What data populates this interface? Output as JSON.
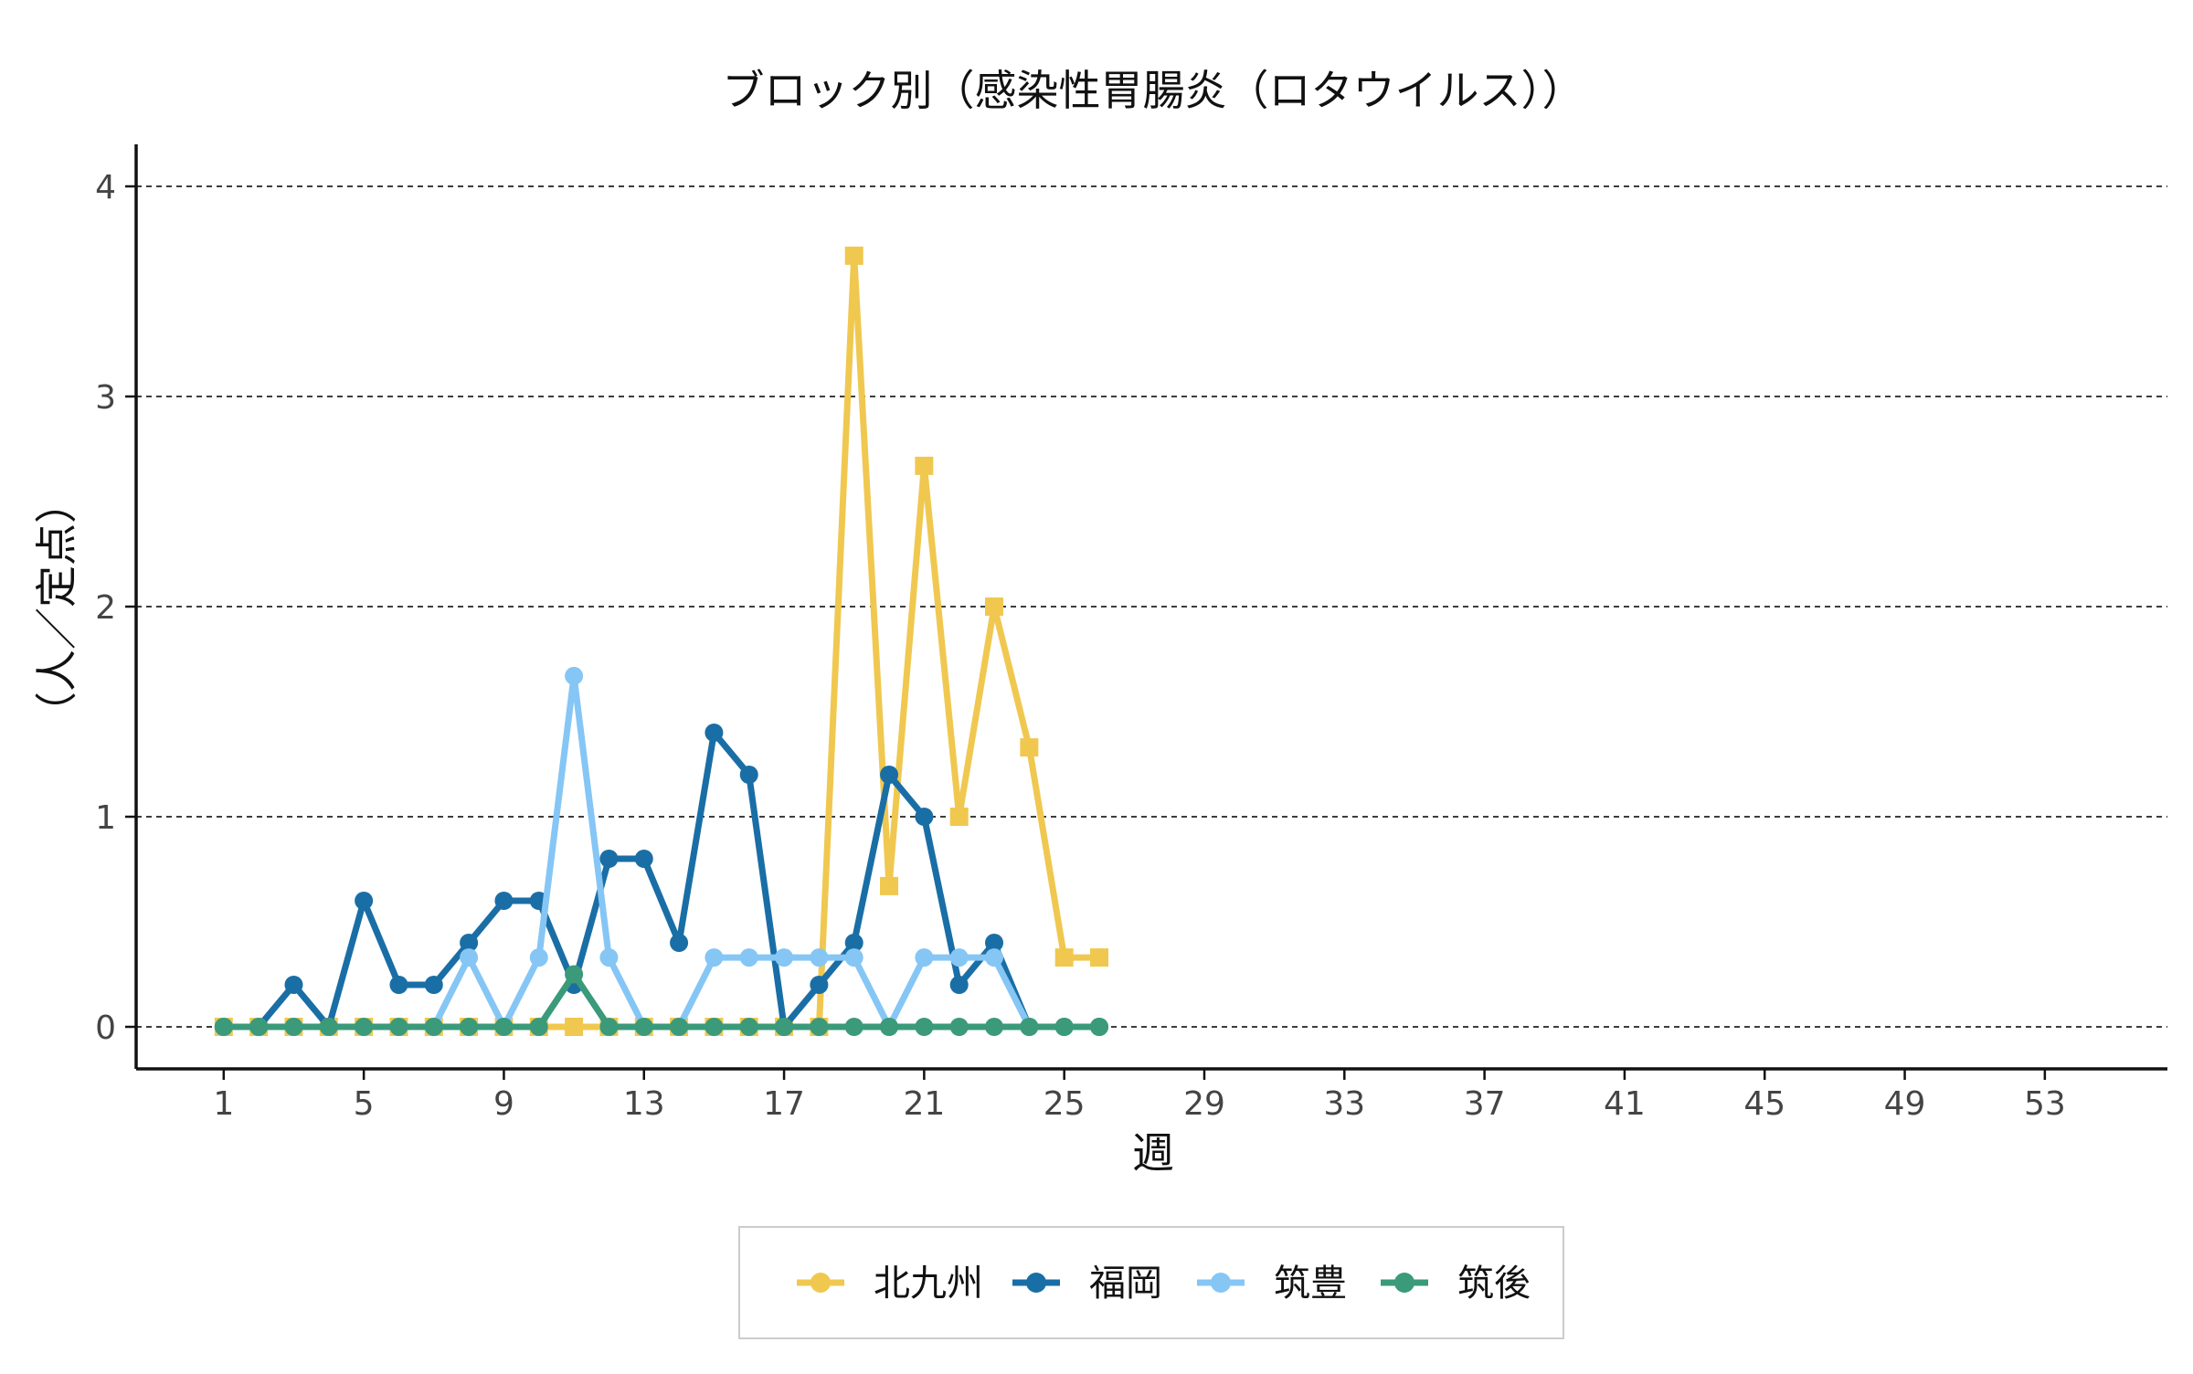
{
  "chart_data": {
    "type": "line",
    "title": "ブロック別（感染性胃腸炎（ロタウイルス））",
    "xlabel": "週",
    "ylabel": "（人／定点）",
    "xlim": [
      -1.5,
      56.5
    ],
    "ylim": [
      -0.2,
      4.2
    ],
    "x_ticks": [
      1,
      5,
      9,
      13,
      17,
      21,
      25,
      29,
      33,
      37,
      41,
      45,
      49,
      53
    ],
    "y_ticks": [
      0,
      1,
      2,
      3,
      4
    ],
    "grid": "horizontal dashed",
    "legend_position": "bottom",
    "series": [
      {
        "name": "北九州",
        "color": "#F0C850",
        "marker": "square",
        "x": [
          1,
          2,
          3,
          4,
          5,
          6,
          7,
          8,
          9,
          10,
          11,
          12,
          13,
          14,
          15,
          16,
          17,
          18,
          19,
          20,
          21,
          22,
          23,
          24,
          25,
          26
        ],
        "values": [
          0,
          0,
          0,
          0,
          0,
          0,
          0,
          0,
          0,
          0,
          0,
          0,
          0,
          0,
          0,
          0,
          0,
          0,
          3.67,
          0.67,
          2.67,
          1,
          2,
          1.33,
          0.33,
          0.33
        ]
      },
      {
        "name": "福岡",
        "color": "#1A6EA6",
        "marker": "circle",
        "x": [
          1,
          2,
          3,
          4,
          5,
          6,
          7,
          8,
          9,
          10,
          11,
          12,
          13,
          14,
          15,
          16,
          17,
          18,
          19,
          20,
          21,
          22,
          23,
          24,
          25,
          26
        ],
        "values": [
          0,
          0,
          0.2,
          0,
          0.6,
          0.2,
          0.2,
          0.4,
          0.6,
          0.6,
          0.2,
          0.8,
          0.8,
          0.4,
          1.4,
          1.2,
          0,
          0.2,
          0.4,
          1.2,
          1,
          0.2,
          0.4,
          0,
          0,
          0
        ]
      },
      {
        "name": "筑豊",
        "color": "#85C6F5",
        "marker": "circle",
        "x": [
          1,
          2,
          3,
          4,
          5,
          6,
          7,
          8,
          9,
          10,
          11,
          12,
          13,
          14,
          15,
          16,
          17,
          18,
          19,
          20,
          21,
          22,
          23,
          24,
          25,
          26
        ],
        "values": [
          0,
          0,
          0,
          0,
          0,
          0,
          0,
          0.33,
          0,
          0.33,
          1.67,
          0.33,
          0,
          0,
          0.33,
          0.33,
          0.33,
          0.33,
          0.33,
          0,
          0.33,
          0.33,
          0.33,
          0,
          0,
          0
        ]
      },
      {
        "name": "筑後",
        "color": "#3A9A7A",
        "marker": "circle",
        "x": [
          1,
          2,
          3,
          4,
          5,
          6,
          7,
          8,
          9,
          10,
          11,
          12,
          13,
          14,
          15,
          16,
          17,
          18,
          19,
          20,
          21,
          22,
          23,
          24,
          25,
          26
        ],
        "values": [
          0,
          0,
          0,
          0,
          0,
          0,
          0,
          0,
          0,
          0,
          0.25,
          0,
          0,
          0,
          0,
          0,
          0,
          0,
          0,
          0,
          0,
          0,
          0,
          0,
          0,
          0
        ]
      }
    ]
  }
}
